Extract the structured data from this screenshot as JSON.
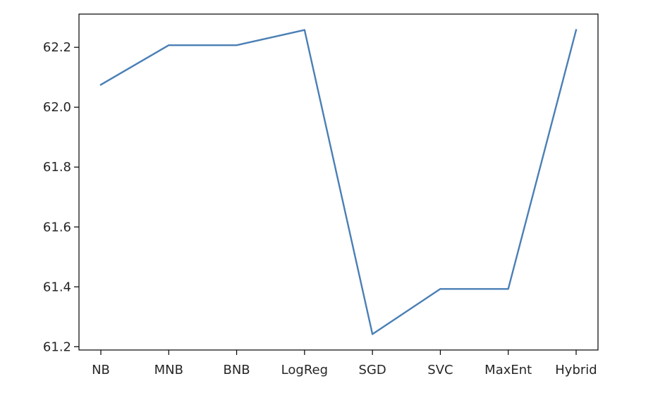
{
  "chart_data": {
    "type": "line",
    "title": "",
    "xlabel": "",
    "ylabel": "",
    "categories": [
      "NB",
      "MNB",
      "BNB",
      "LogReg",
      "SGD",
      "SVC",
      "MaxEnt",
      "Hybrid"
    ],
    "series": [
      {
        "values": [
          62.075,
          62.207,
          62.207,
          62.258,
          61.242,
          61.393,
          61.393,
          62.258
        ],
        "color": "#4a7fb5"
      }
    ],
    "ylim": [
      61.189,
      62.311
    ],
    "yticks": [
      61.2,
      61.4,
      61.6,
      61.8,
      62.0,
      62.2
    ],
    "ytick_labels": [
      "61.2",
      "61.4",
      "61.6",
      "61.8",
      "62.0",
      "62.2"
    ],
    "grid": false,
    "legend": "none"
  }
}
